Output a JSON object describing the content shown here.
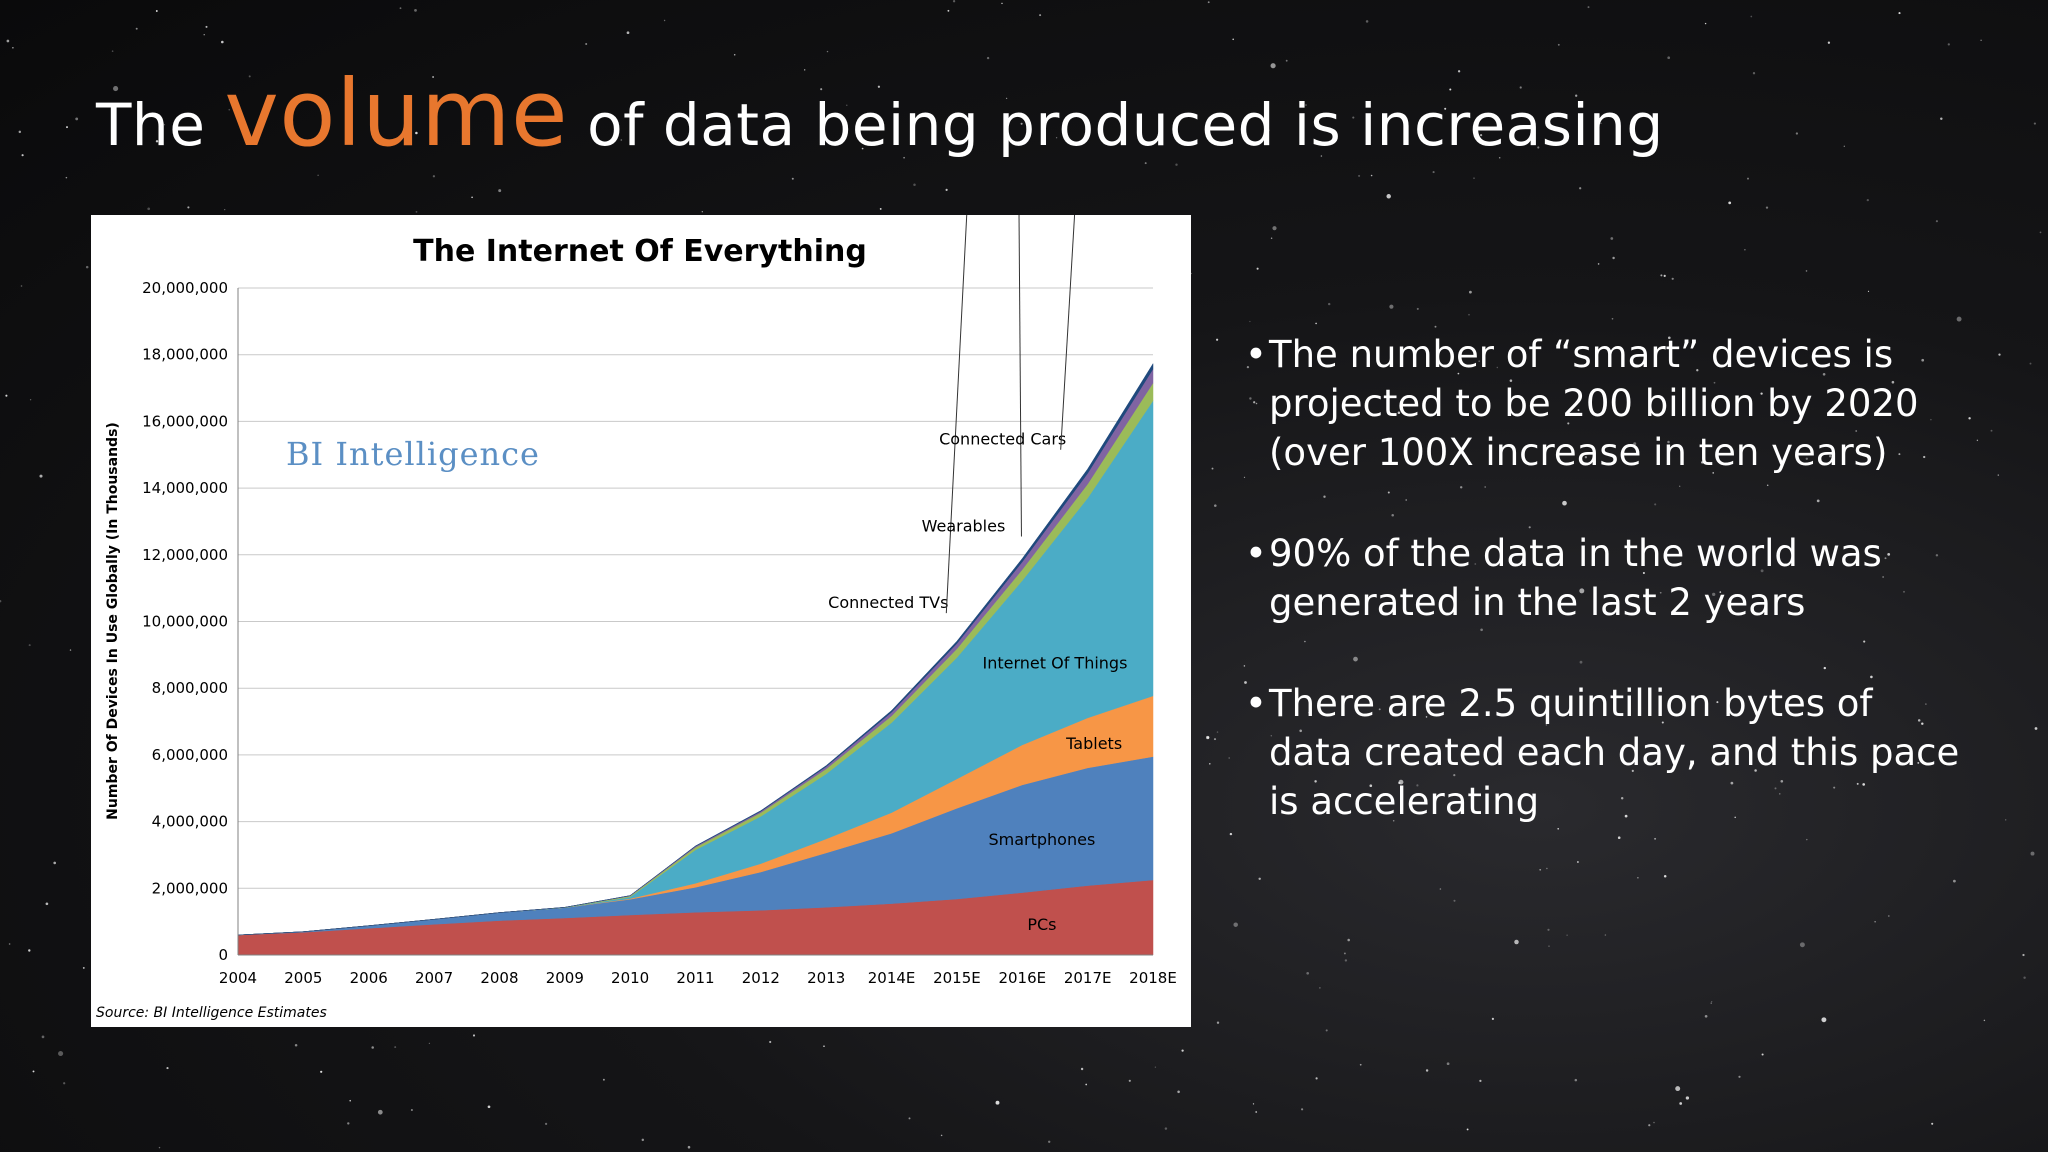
{
  "slide": {
    "title_prefix": "The",
    "title_accent": "volume",
    "title_suffix": "of data being produced is increasing",
    "accent_color": "#e8772e",
    "bullets": [
      "The number of “smart” devices is projected to be 200 billion by 2020 (over 100X increase in ten years)",
      "90% of the data in the world was generated in the last 2 years",
      "There are 2.5 quintillion bytes of data created each day, and this pace is accelerating"
    ]
  },
  "chart_data": {
    "type": "area",
    "stacked": true,
    "title": "The Internet Of Everything",
    "watermark": "BI Intelligence",
    "source": "Source: BI Intelligence Estimates",
    "xlabel": "",
    "ylabel": "Number Of Devices In Use Globally (In Thousands)",
    "ylim": [
      0,
      20000000
    ],
    "yticks": [
      0,
      2000000,
      4000000,
      6000000,
      8000000,
      10000000,
      12000000,
      14000000,
      16000000,
      18000000,
      20000000
    ],
    "ytick_labels": [
      "0",
      "2,000,000",
      "4,000,000",
      "6,000,000",
      "8,000,000",
      "10,000,000",
      "12,000,000",
      "14,000,000",
      "16,000,000",
      "18,000,000",
      "20,000,000"
    ],
    "categories": [
      "2004",
      "2005",
      "2006",
      "2007",
      "2008",
      "2009",
      "2010",
      "2011",
      "2012",
      "2013",
      "2014E",
      "2015E",
      "2016E",
      "2017E",
      "2018E"
    ],
    "grid": true,
    "series": [
      {
        "name": "PCs",
        "color": "#c0504d",
        "values": [
          600000,
          680000,
          800000,
          920000,
          1030000,
          1110000,
          1200000,
          1280000,
          1340000,
          1430000,
          1540000,
          1680000,
          1870000,
          2080000,
          2250000
        ]
      },
      {
        "name": "Smartphones",
        "color": "#4f81bd",
        "values": [
          0,
          20000,
          80000,
          150000,
          240000,
          310000,
          470000,
          750000,
          1150000,
          1630000,
          2110000,
          2720000,
          3230000,
          3530000,
          3700000
        ]
      },
      {
        "name": "Tablets",
        "color": "#f79646",
        "values": [
          0,
          0,
          0,
          0,
          0,
          0,
          20000,
          120000,
          250000,
          420000,
          620000,
          880000,
          1200000,
          1500000,
          1820000
        ]
      },
      {
        "name": "Internet Of Things",
        "color": "#4bacc6",
        "values": [
          0,
          0,
          0,
          0,
          0,
          0,
          50000,
          1000000,
          1420000,
          1950000,
          2700000,
          3640000,
          4930000,
          6590000,
          8850000
        ]
      },
      {
        "name": "Connected TVs",
        "color": "#9bbb59",
        "values": [
          0,
          0,
          0,
          0,
          0,
          10000,
          30000,
          80000,
          110000,
          150000,
          200000,
          260000,
          330000,
          420000,
          530000
        ]
      },
      {
        "name": "Wearables",
        "color": "#8064a2",
        "values": [
          0,
          0,
          0,
          0,
          0,
          0,
          10000,
          30000,
          40000,
          70000,
          110000,
          160000,
          230000,
          320000,
          420000
        ]
      },
      {
        "name": "Connected Cars",
        "color": "#1f497d",
        "values": [
          0,
          0,
          0,
          0,
          0,
          0,
          0,
          10000,
          20000,
          30000,
          50000,
          70000,
          100000,
          130000,
          160000
        ]
      }
    ],
    "annotations": [
      "PCs",
      "Smartphones",
      "Tablets",
      "Internet Of Things",
      "Connected TVs",
      "Wearables",
      "Connected Cars"
    ]
  }
}
